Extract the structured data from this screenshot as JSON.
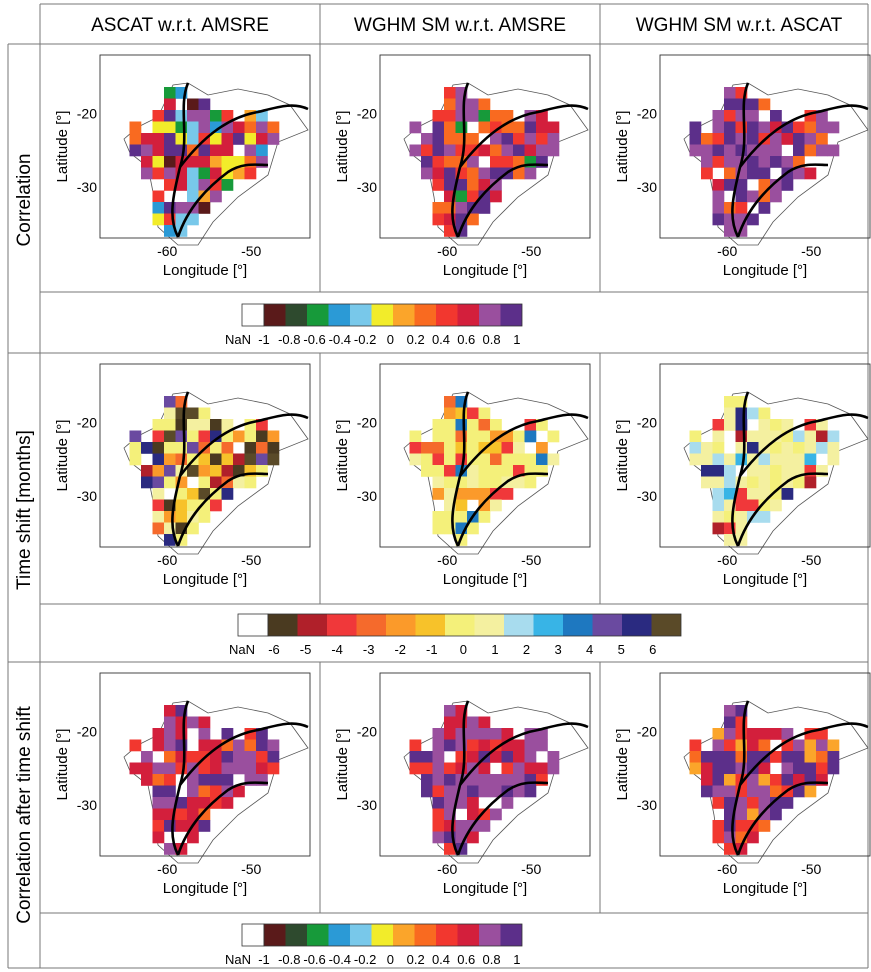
{
  "columns": [
    "ASCAT w.r.t. AMSRE",
    "WGHM SM w.r.t. AMSRE",
    "WGHM SM w.r.t. ASCAT"
  ],
  "rows": [
    "Correlation",
    "Time shift [months]",
    "Correlation after time shift"
  ],
  "axes": {
    "xlabel": "Longitude [°]",
    "ylabel": "Latitude [°]",
    "xticks": [
      -60,
      -50
    ],
    "yticks": [
      -20,
      -30
    ],
    "xlim": [
      -68,
      -43
    ],
    "ylim": [
      -37,
      -12
    ]
  },
  "colorbars": {
    "correlation": {
      "nan_label": "NaN",
      "labels": [
        "-1",
        "-0.8",
        "-0.6",
        "-0.4",
        "-0.2",
        "0",
        "0.2",
        "0.4",
        "0.6",
        "0.8",
        "1"
      ],
      "colors": [
        "#5a1a1a",
        "#2e4a2e",
        "#179a3a",
        "#2b9ad6",
        "#78c8ea",
        "#f2ec2a",
        "#fba52a",
        "#f96a20",
        "#f2372f",
        "#d31f3c",
        "#9a4f9e",
        "#5c2f8a"
      ]
    },
    "timeshift": {
      "nan_label": "NaN",
      "labels": [
        "-6",
        "-5",
        "-4",
        "-3",
        "-2",
        "-1",
        "0",
        "1",
        "2",
        "3",
        "4",
        "5",
        "6"
      ],
      "colors": [
        "#4a3a20",
        "#b0202a",
        "#f0383a",
        "#f56a2c",
        "#fb9a2a",
        "#f7c22a",
        "#f4f07a",
        "#f4f0a0",
        "#a8dcee",
        "#38b4e6",
        "#1e78c0",
        "#6a4aa0",
        "#2a2a80",
        "#5a4a28"
      ]
    }
  },
  "chart_data": [
    {
      "type": "heatmap",
      "row": "Correlation",
      "column": "ASCAT w.r.t. AMSRE",
      "value_summary": "mostly 0.6–1 in east, mixed 0–0.6 in west, scattered negatives near river"
    },
    {
      "type": "heatmap",
      "row": "Correlation",
      "column": "WGHM SM w.r.t. AMSRE",
      "value_summary": "mostly 0.6–1, red 0.4–0.6 in west"
    },
    {
      "type": "heatmap",
      "row": "Correlation",
      "column": "WGHM SM w.r.t. ASCAT",
      "value_summary": "mostly 0.8–1, red patches in centre"
    },
    {
      "type": "heatmap",
      "row": "Time shift [months]",
      "column": "ASCAT w.r.t. AMSRE",
      "value_summary": "mostly 0, negatives in west, positive 4 in southeast"
    },
    {
      "type": "heatmap",
      "row": "Time shift [months]",
      "column": "WGHM SM w.r.t. AMSRE",
      "value_summary": "mostly 0, some -2 to -4 in west"
    },
    {
      "type": "heatmap",
      "row": "Time shift [months]",
      "column": "WGHM SM w.r.t. ASCAT",
      "value_summary": "mostly 0, some 1–2 and -4 to -5 in east"
    },
    {
      "type": "heatmap",
      "row": "Correlation after time shift",
      "column": "ASCAT w.r.t. AMSRE",
      "value_summary": "mostly 0.6–1"
    },
    {
      "type": "heatmap",
      "row": "Correlation after time shift",
      "column": "WGHM SM w.r.t. AMSRE",
      "value_summary": "mostly 0.8–1"
    },
    {
      "type": "heatmap",
      "row": "Correlation after time shift",
      "column": "WGHM SM w.r.t. ASCAT",
      "value_summary": "mostly 0.8–1, red in centre"
    }
  ]
}
